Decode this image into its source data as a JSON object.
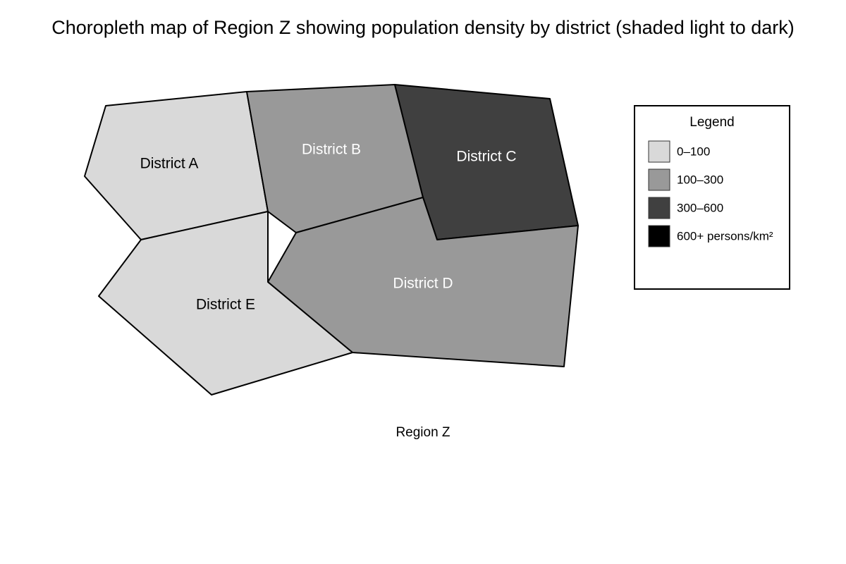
{
  "title": "Choropleth map of Region Z showing population density by district (shaded light to dark)",
  "districts": [
    "District A",
    "District B",
    "District C",
    "District D",
    "District E"
  ],
  "caption": "Region Z",
  "legend": {
    "title": "Legend",
    "items": [
      {
        "label": "0–100",
        "color": "#d9d9d9"
      },
      {
        "label": "100–300",
        "color": "#999999"
      },
      {
        "label": "300–600",
        "color": "#404040"
      },
      {
        "label": "600+ persons/km²",
        "color": "#000000"
      }
    ]
  }
}
